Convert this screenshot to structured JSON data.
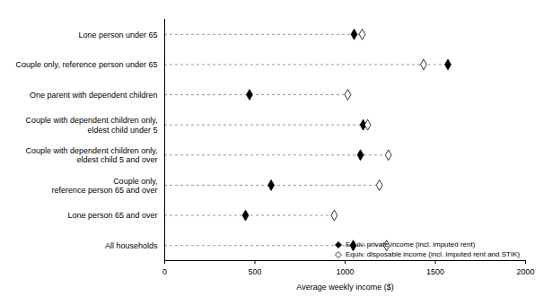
{
  "chart_data": {
    "type": "dot",
    "orientation": "horizontal",
    "categories": [
      "Lone person under 65",
      "Couple only, reference person under 65",
      "One parent with dependent children",
      "Couple with dependent children only, eldest child under 5",
      "Couple with dependent children only, eldest child 5 and over",
      "Couple only, reference person 65 and over",
      "Lone person 65 and over",
      "All households"
    ],
    "series": [
      {
        "name": "Equiv. private income (incl. imputed rent)",
        "color": "#000000",
        "marker": "diamond-filled",
        "values": [
          1050,
          1570,
          470,
          1100,
          1085,
          590,
          448,
          1045
        ]
      },
      {
        "name": "Equiv. disposable income (incl. imputed rent and STIK)",
        "color": "#000000",
        "marker": "diamond-open",
        "values": [
          1095,
          1435,
          1015,
          1125,
          1240,
          1190,
          940,
          1230
        ]
      }
    ],
    "xlabel": "Average weekly income ($)",
    "xlim": [
      0,
      2000
    ],
    "xticks": [
      0,
      500,
      1000,
      1500,
      2000
    ],
    "line_style": "dashed",
    "legend": "bottom-right"
  }
}
